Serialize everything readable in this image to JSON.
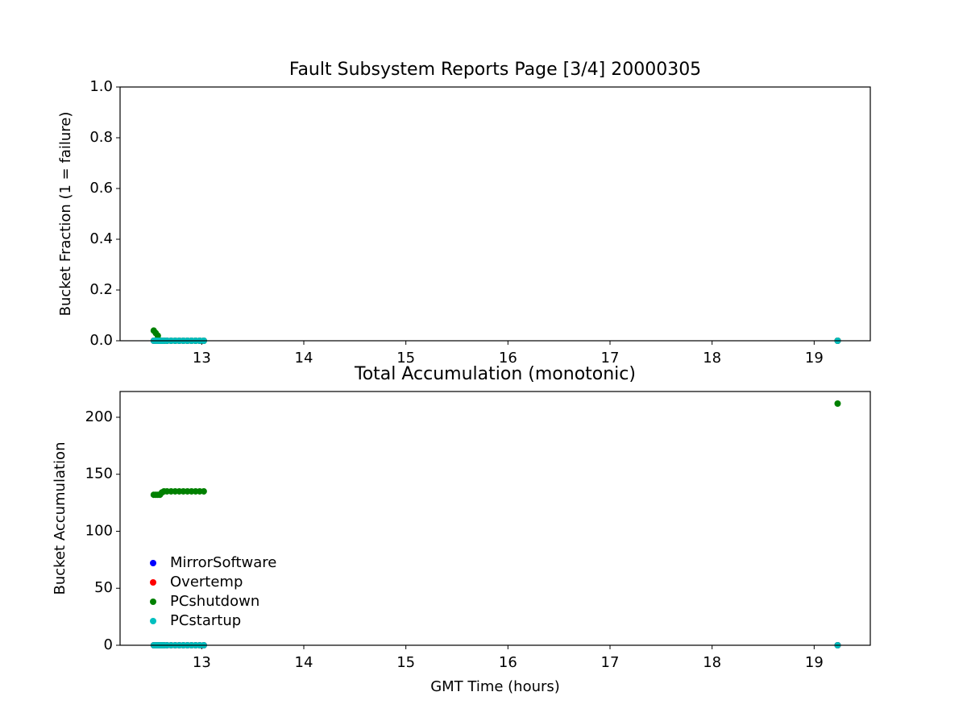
{
  "chart_data": [
    {
      "type": "scatter",
      "title": "Fault Subsystem Reports Page [3/4] 20000305",
      "y_label": "Bucket Fraction (1 = failure)",
      "x": [
        12.53,
        12.55,
        12.57,
        12.59,
        12.61,
        12.63,
        12.66,
        12.7,
        12.74,
        12.78,
        12.82,
        12.86,
        12.9,
        12.94,
        12.98,
        13.02,
        19.23
      ],
      "series": [
        {
          "name": "MirrorSoftware",
          "color": "#0000ff",
          "values": [
            0,
            0,
            0,
            0,
            0,
            0,
            0,
            0,
            0,
            0,
            0,
            0,
            0,
            0,
            0,
            0,
            0
          ]
        },
        {
          "name": "Overtemp",
          "color": "#ff0000",
          "values": [
            0,
            0,
            0,
            0,
            0,
            0,
            0,
            0,
            0,
            0,
            0,
            0,
            0,
            0,
            0,
            0,
            0
          ]
        },
        {
          "name": "PCshutdown",
          "color": "#008000",
          "values": [
            0.04,
            0.03,
            0.02,
            0,
            0,
            0,
            0,
            0,
            0,
            0,
            0,
            0,
            0,
            0,
            0,
            0,
            0
          ]
        },
        {
          "name": "PCstartup",
          "color": "#00bfbf",
          "values": [
            0,
            0,
            0,
            0,
            0,
            0,
            0,
            0,
            0,
            0,
            0,
            0,
            0,
            0,
            0,
            0,
            0
          ]
        }
      ],
      "xlim": [
        12.2,
        19.55
      ],
      "xticks": [
        13,
        14,
        15,
        16,
        17,
        18,
        19
      ],
      "ylim": [
        0,
        1
      ],
      "yticks": [
        {
          "value": 0,
          "label": "0.0"
        },
        0.2,
        0.4,
        0.6,
        0.8,
        {
          "value": 1,
          "label": "1.0"
        }
      ]
    },
    {
      "type": "scatter",
      "title": "Total Accumulation (monotonic)",
      "x_label": "GMT Time (hours)",
      "y_label": "Bucket Accumulation",
      "x": [
        12.53,
        12.55,
        12.57,
        12.59,
        12.61,
        12.63,
        12.66,
        12.7,
        12.74,
        12.78,
        12.82,
        12.86,
        12.9,
        12.94,
        12.98,
        13.02,
        19.23
      ],
      "series": [
        {
          "name": "MirrorSoftware",
          "color": "#0000ff",
          "values": [
            0,
            0,
            0,
            0,
            0,
            0,
            0,
            0,
            0,
            0,
            0,
            0,
            0,
            0,
            0,
            0,
            0
          ]
        },
        {
          "name": "Overtemp",
          "color": "#ff0000",
          "values": [
            0,
            0,
            0,
            0,
            0,
            0,
            0,
            0,
            0,
            0,
            0,
            0,
            0,
            0,
            0,
            0,
            0
          ]
        },
        {
          "name": "PCshutdown",
          "color": "#008000",
          "values": [
            132,
            132,
            132,
            132,
            134,
            135,
            135,
            135,
            135,
            135,
            135,
            135,
            135,
            135,
            135,
            135,
            212
          ]
        },
        {
          "name": "PCstartup",
          "color": "#00bfbf",
          "values": [
            0,
            0,
            0,
            0,
            0,
            0,
            0,
            0,
            0,
            0,
            0,
            0,
            0,
            0,
            0,
            0,
            0
          ]
        }
      ],
      "xlim": [
        12.2,
        19.55
      ],
      "xticks": [
        13,
        14,
        15,
        16,
        17,
        18,
        19
      ],
      "ylim": [
        0,
        222.6
      ],
      "yticks": [
        0,
        50,
        100,
        150,
        200
      ],
      "legend": "lower left"
    }
  ]
}
